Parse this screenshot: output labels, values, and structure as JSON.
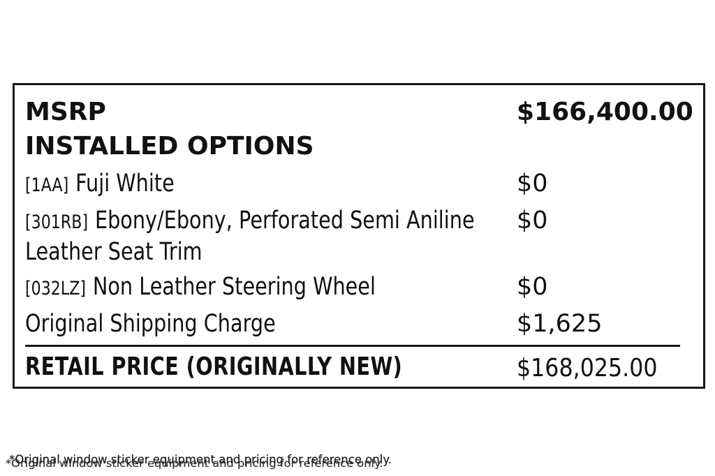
{
  "sticker": {
    "msrp": {
      "label": "MSRP",
      "price": "$166,400.00"
    },
    "options_heading": "INSTALLED OPTIONS",
    "options": [
      {
        "code": "[1AA]",
        "name": "Fuji White",
        "price": "$0"
      },
      {
        "code": "[301RB]",
        "name": "Ebony/Ebony, Perforated Semi Aniline Leather Seat Trim",
        "price": "$0"
      },
      {
        "code": "[032LZ]",
        "name": "Non Leather Steering Wheel",
        "price": "$0"
      },
      {
        "code": "",
        "name": "Original Shipping Charge",
        "price": "$1,625"
      }
    ],
    "retail": {
      "label": "RETAIL PRICE (ORIGINALLY NEW)",
      "price": "$168,025.00"
    }
  },
  "footnote": {
    "text": "*Original window sticker equipment and pricing for reference only.",
    "ghost_text": "*Original window sticker equipment and pricing for reference only."
  },
  "colors": {
    "text": "#111111",
    "border": "#161616",
    "background": "#ffffff"
  }
}
